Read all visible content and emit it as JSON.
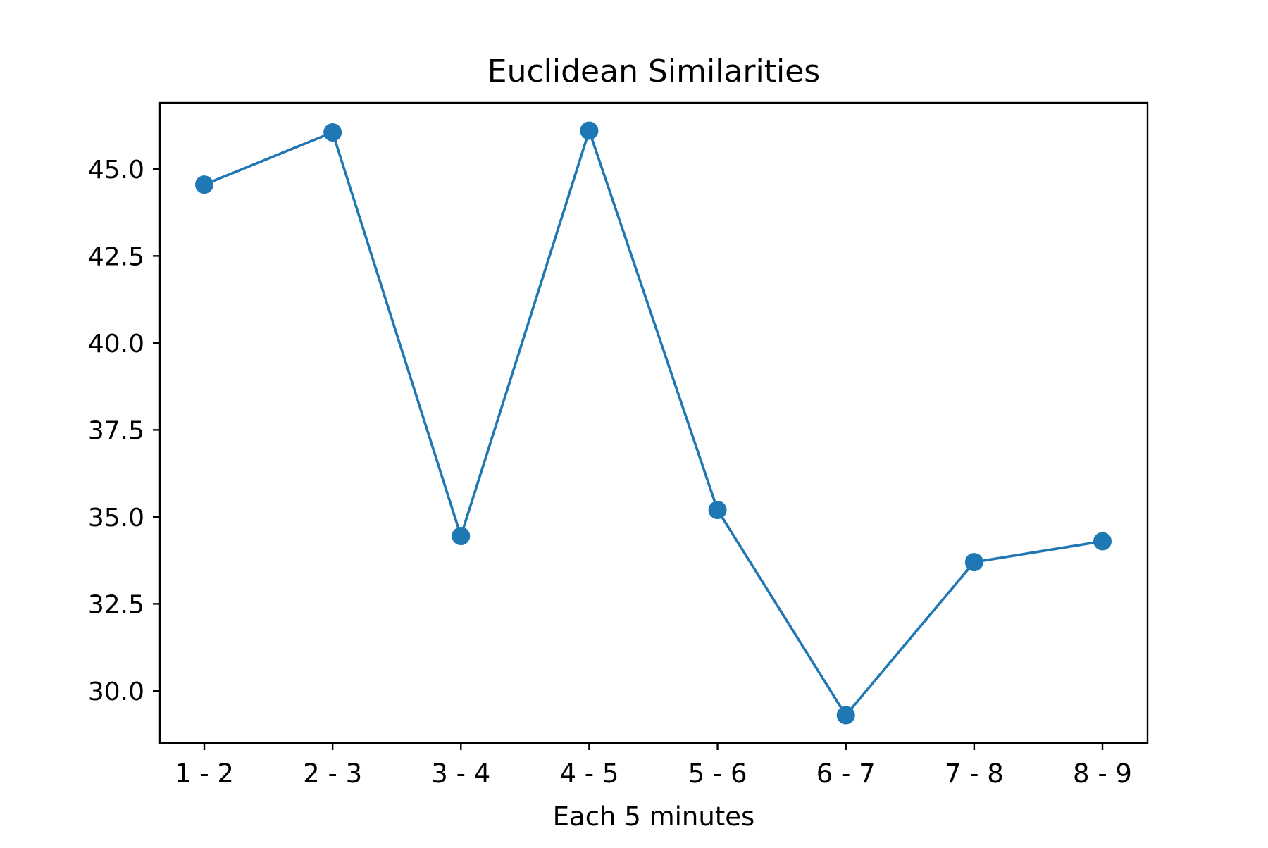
{
  "chart_data": {
    "type": "line",
    "title": "Euclidean Similarities",
    "xlabel": "Each 5 minutes",
    "ylabel": "",
    "categories": [
      "1 - 2",
      "2 - 3",
      "3 - 4",
      "4 - 5",
      "5 - 6",
      "6 - 7",
      "7 - 8",
      "8 - 9"
    ],
    "series": [
      {
        "values": [
          44.55,
          46.05,
          34.45,
          46.1,
          35.2,
          29.3,
          33.7,
          34.3
        ],
        "color": "#1f77b4",
        "marker": "circle"
      }
    ],
    "yticks": [
      30.0,
      32.5,
      35.0,
      37.5,
      40.0,
      42.5,
      45.0
    ],
    "ytick_labels": [
      "30.0",
      "32.5",
      "35.0",
      "37.5",
      "40.0",
      "42.5",
      "45.0"
    ],
    "ylim": [
      28.5,
      46.9
    ],
    "grid": false,
    "legend": "none"
  }
}
